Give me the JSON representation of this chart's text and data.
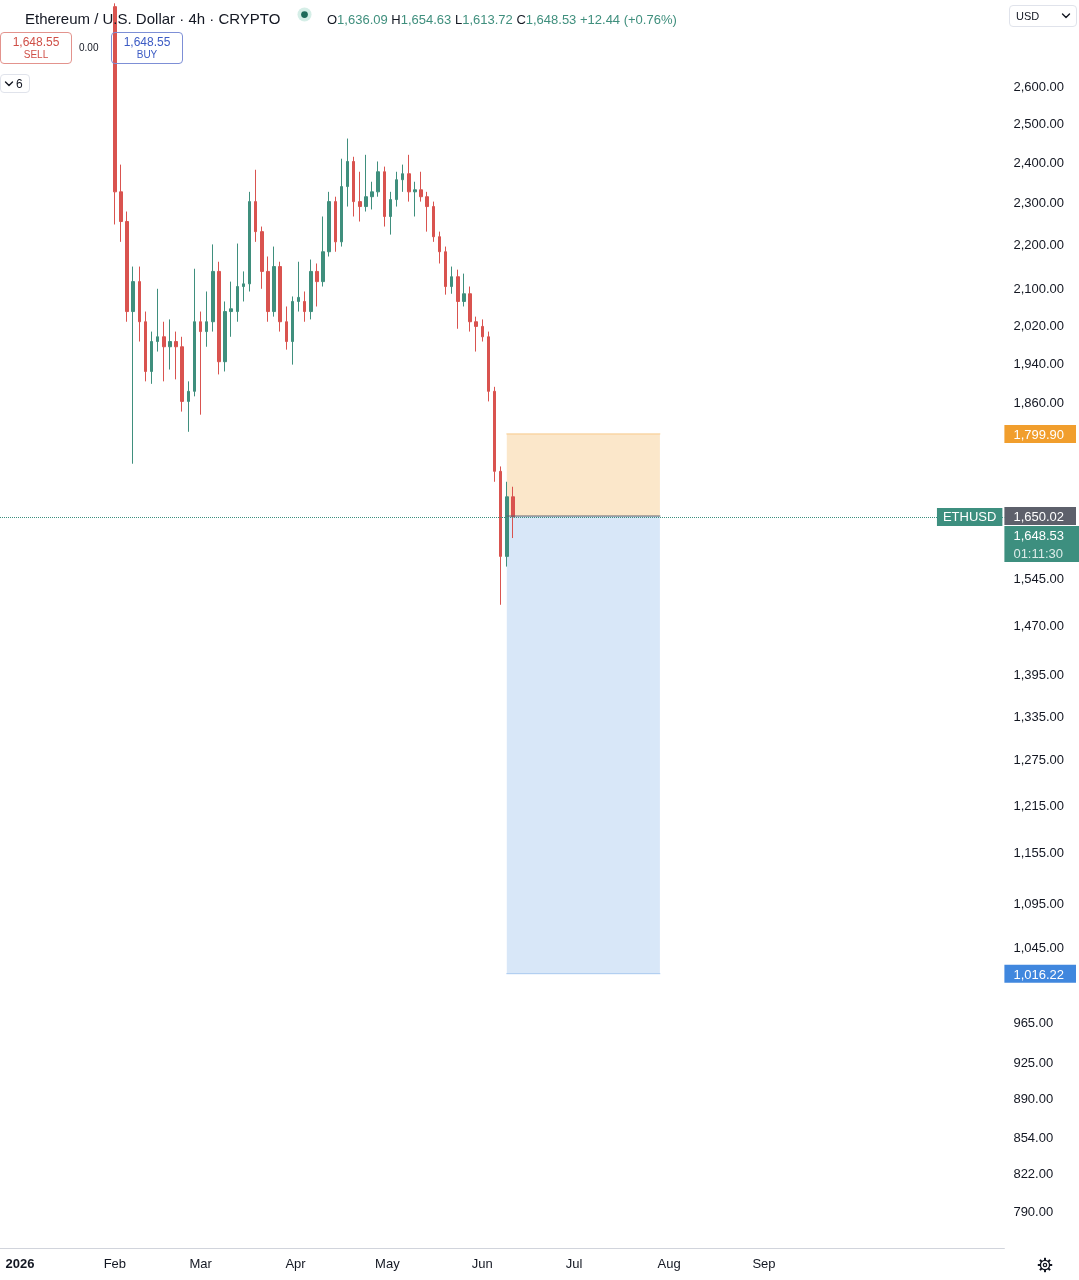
{
  "chart_data": {
    "type": "candlestick",
    "title": "Ethereum / U.S. Dollar · 4h · CRYPTO",
    "subtitle": "O1,636.09 H1,654.63 L1,613.72 C1,648.53 +12.44 (+0.76%)",
    "x": [
      "2026-02-01",
      "2026-02-03",
      "2026-02-05",
      "2026-02-07",
      "2026-02-09",
      "2026-02-11",
      "2026-02-13",
      "2026-02-15",
      "2026-02-17",
      "2026-02-19",
      "2026-02-21",
      "2026-02-23",
      "2026-02-25",
      "2026-02-27",
      "2026-03-01",
      "2026-03-03",
      "2026-03-05",
      "2026-03-07",
      "2026-03-09",
      "2026-03-11",
      "2026-03-13",
      "2026-03-15",
      "2026-03-17",
      "2026-03-19",
      "2026-03-21",
      "2026-03-23",
      "2026-03-25",
      "2026-03-27",
      "2026-03-29",
      "2026-03-31",
      "2026-04-02",
      "2026-04-04",
      "2026-04-06",
      "2026-04-08",
      "2026-04-10",
      "2026-04-12",
      "2026-04-14",
      "2026-04-16",
      "2026-04-18",
      "2026-04-20",
      "2026-04-22",
      "2026-04-24",
      "2026-04-26",
      "2026-04-28",
      "2026-04-30",
      "2026-05-02",
      "2026-05-04",
      "2026-05-06",
      "2026-05-08",
      "2026-05-10",
      "2026-05-12",
      "2026-05-14",
      "2026-05-16",
      "2026-05-18",
      "2026-05-20",
      "2026-05-22",
      "2026-05-24",
      "2026-05-26",
      "2026-05-28",
      "2026-05-30",
      "2026-06-01",
      "2026-06-03",
      "2026-06-05",
      "2026-06-07",
      "2026-06-09",
      "2026-06-11"
    ],
    "series": [
      {
        "ohlc": [
          [
            2830,
            2840,
            2247,
            2326
          ],
          [
            2326,
            2394,
            2206,
            2254
          ],
          [
            2254,
            2278,
            2027,
            2049
          ],
          [
            2049,
            2149,
            1744,
            2115
          ],
          [
            2115,
            2149,
            1985,
            2027
          ],
          [
            2027,
            2049,
            1903,
            1923
          ],
          [
            1923,
            2006,
            1898,
            1985
          ],
          [
            1985,
            2099,
            1964,
            1995
          ],
          [
            1995,
            2027,
            1903,
            1974
          ],
          [
            1974,
            2032,
            1927,
            1985
          ],
          [
            1985,
            2006,
            1907,
            1974
          ],
          [
            1974,
            1995,
            1843,
            1863
          ],
          [
            1863,
            1903,
            1804,
            1883
          ],
          [
            1883,
            2144,
            1873,
            2027
          ],
          [
            2027,
            2049,
            1837,
            2006
          ],
          [
            2006,
            2093,
            1974,
            2027
          ],
          [
            2027,
            2200,
            2006,
            2138
          ],
          [
            2138,
            2160,
            1917,
            1943
          ],
          [
            1943,
            2071,
            1923,
            2049
          ],
          [
            2049,
            2115,
            1995,
            2055
          ],
          [
            2049,
            2202,
            2027,
            2104
          ],
          [
            2104,
            2138,
            2071,
            2110
          ],
          [
            2110,
            2326,
            2093,
            2302
          ],
          [
            2302,
            2381,
            2206,
            2230
          ],
          [
            2230,
            2242,
            2099,
            2138
          ],
          [
            2138,
            2172,
            2027,
            2049
          ],
          [
            2049,
            2195,
            2038,
            2149
          ],
          [
            2149,
            2160,
            2006,
            2027
          ],
          [
            2027,
            2060,
            1968,
            1985
          ],
          [
            1985,
            2082,
            1937,
            2071
          ],
          [
            2071,
            2160,
            2049,
            2080
          ],
          [
            2071,
            2093,
            2027,
            2049
          ],
          [
            2049,
            2165,
            2032,
            2138
          ],
          [
            2138,
            2156,
            2060,
            2115
          ],
          [
            2115,
            2266,
            2104,
            2183
          ],
          [
            2183,
            2326,
            2172,
            2302
          ],
          [
            2302,
            2314,
            2183,
            2206
          ],
          [
            2206,
            2409,
            2195,
            2339
          ],
          [
            2339,
            2461,
            2290,
            2402
          ],
          [
            2402,
            2414,
            2266,
            2302
          ],
          [
            2302,
            2376,
            2254,
            2290
          ],
          [
            2290,
            2419,
            2278,
            2314
          ],
          [
            2314,
            2351,
            2283,
            2326
          ],
          [
            2326,
            2402,
            2314,
            2376
          ],
          [
            2376,
            2389,
            2242,
            2266
          ],
          [
            2266,
            2326,
            2223,
            2307
          ],
          [
            2307,
            2376,
            2290,
            2356
          ],
          [
            2356,
            2394,
            2326,
            2371
          ],
          [
            2371,
            2419,
            2302,
            2326
          ],
          [
            2326,
            2351,
            2266,
            2331
          ],
          [
            2331,
            2376,
            2302,
            2314
          ],
          [
            2314,
            2326,
            2230,
            2290
          ],
          [
            2290,
            2302,
            2206,
            2218
          ],
          [
            2218,
            2230,
            2156,
            2183
          ],
          [
            2183,
            2195,
            2086,
            2104
          ],
          [
            2104,
            2149,
            2088,
            2126
          ],
          [
            2126,
            2142,
            2012,
            2071
          ],
          [
            2071,
            2133,
            2060,
            2088
          ],
          [
            2088,
            2104,
            2006,
            2027
          ],
          [
            2027,
            2038,
            1964,
            2017
          ],
          [
            2017,
            2032,
            1985,
            1995
          ],
          [
            1995,
            2006,
            1863,
            1883
          ],
          [
            1883,
            1892,
            1711,
            1730
          ],
          [
            1730,
            1739,
            1502,
            1581
          ],
          [
            1581,
            1711,
            1564,
            1684
          ],
          [
            1684,
            1702,
            1612,
            1648.53
          ]
        ]
      },
      {
        "type": "line",
        "x": [
          "2026-06-09",
          "2026-07-29"
        ],
        "values": [
          1799.9,
          1799.9
        ],
        "lower": [
          1650.02,
          1650.02
        ],
        "upper": [
          1799.9,
          1799.9
        ],
        "color": "#f7c98a"
      },
      {
        "type": "line",
        "x": [
          "2026-06-09",
          "2026-07-29"
        ],
        "values": [
          1016.22,
          1016.22
        ],
        "lower": [
          1016.22,
          1016.22
        ],
        "upper": [
          1650.02,
          1650.02
        ],
        "color": "#a9c9f0"
      },
      {
        "type": "line",
        "x": [
          "2026-06-09",
          "2026-07-29"
        ],
        "values": [
          1650.02,
          1650.02
        ],
        "color": "#5d606b"
      }
    ],
    "xlim": [
      "2025-12-25T12:00",
      "2026-11-18T12:00"
    ],
    "xticks": [
      {
        "value": "2026-01-01",
        "label": "2026"
      },
      {
        "value": "2026-02-01",
        "label": "Feb"
      },
      {
        "value": "2026-03-01",
        "label": "Mar"
      },
      {
        "value": "2026-04-01",
        "label": "Apr"
      },
      {
        "value": "2026-05-01",
        "label": "May"
      },
      {
        "value": "2026-06-01",
        "label": "Jun"
      },
      {
        "value": "2026-07-01",
        "label": "Jul"
      },
      {
        "value": "2026-08-01",
        "label": "Aug"
      },
      {
        "value": "2026-09-01",
        "label": "Sep"
      }
    ],
    "ylim": [
      760,
      2850
    ],
    "yticks": [
      {
        "value": 2600,
        "label": "2,600.00"
      },
      {
        "value": 2500,
        "label": "2,500.00"
      },
      {
        "value": 2400,
        "label": "2,400.00"
      },
      {
        "value": 2300,
        "label": "2,300.00"
      },
      {
        "value": 2200,
        "label": "2,200.00"
      },
      {
        "value": 2100,
        "label": "2,100.00"
      },
      {
        "value": 2020,
        "label": "2,020.00"
      },
      {
        "value": 1940,
        "label": "1,940.00"
      },
      {
        "value": 1860,
        "label": "1,860.00"
      },
      {
        "value": 1799.9,
        "label": "1,799.90"
      },
      {
        "value": 1650.02,
        "label": "1,650.02"
      },
      {
        "value": 1545,
        "label": "1,545.00"
      },
      {
        "value": 1470,
        "label": "1,470.00"
      },
      {
        "value": 1395,
        "label": "1,395.00"
      },
      {
        "value": 1335,
        "label": "1,335.00"
      },
      {
        "value": 1275,
        "label": "1,275.00"
      },
      {
        "value": 1215,
        "label": "1,215.00"
      },
      {
        "value": 1155,
        "label": "1,155.00"
      },
      {
        "value": 1095,
        "label": "1,095.00"
      },
      {
        "value": 1045,
        "label": "1,045.00"
      },
      {
        "value": 1016.22,
        "label": "1,016.22"
      },
      {
        "value": 965,
        "label": "965.00"
      },
      {
        "value": 925,
        "label": "925.00"
      },
      {
        "value": 890,
        "label": "890.00"
      },
      {
        "value": 854,
        "label": "854.00"
      },
      {
        "value": 822,
        "label": "822.00"
      },
      {
        "value": 790,
        "label": "790.00"
      }
    ],
    "log": "y",
    "grid": false,
    "marker": "none",
    "ref_lines": [
      {
        "axis": "y",
        "value": 1648.53,
        "label": "ETHUSD",
        "color": "#3d8f7f",
        "line_style": "dotted"
      }
    ],
    "annotations": [
      "1,648.55",
      "SELL",
      "0.00",
      "1,648.55",
      "BUY",
      "6",
      "USD",
      "1,648.53",
      "01:11:30"
    ]
  }
}
